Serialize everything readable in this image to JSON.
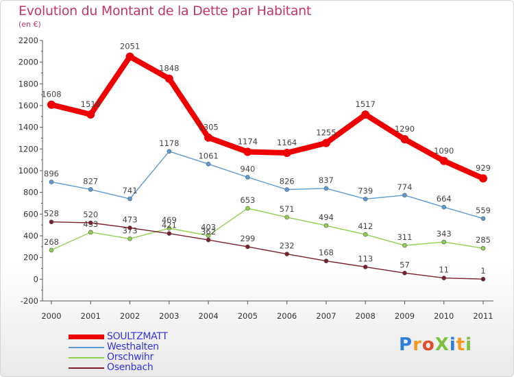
{
  "title": "Evolution du Montant de la Dette par Habitant",
  "subtitle": "(en €)",
  "logo_text": "ProXiti",
  "chart_data": {
    "type": "line",
    "title": "Evolution du Montant de la Dette par Habitant",
    "subtitle": "(en €)",
    "xlabel": "",
    "ylabel": "",
    "x": [
      "2000",
      "2001",
      "2002",
      "2003",
      "2004",
      "2005",
      "2006",
      "2007",
      "2008",
      "2009",
      "2010",
      "2011"
    ],
    "ylim": [
      -200,
      2200
    ],
    "yticks": [
      -200,
      0,
      200,
      400,
      600,
      800,
      1000,
      1200,
      1400,
      1600,
      1800,
      2000,
      2200
    ],
    "grid": false,
    "legend_position": "bottom-left",
    "series": [
      {
        "name": "SOULTZMATT",
        "color": "#ee0000",
        "label_color": "#3333dd",
        "width": 8,
        "values": [
          1608,
          1518,
          2051,
          1848,
          1305,
          1174,
          1164,
          1255,
          1517,
          1290,
          1090,
          929
        ]
      },
      {
        "name": "Westhalten",
        "color": "#5b9bd5",
        "label_color": "#3333dd",
        "width": 1.4,
        "values": [
          896,
          827,
          741,
          1178,
          1061,
          940,
          826,
          837,
          739,
          774,
          664,
          559
        ]
      },
      {
        "name": "Orschwihr",
        "color": "#8fd14f",
        "label_color": "#3333dd",
        "width": 1.4,
        "values": [
          268,
          433,
          373,
          469,
          403,
          653,
          571,
          494,
          412,
          311,
          343,
          285
        ]
      },
      {
        "name": "Osenbach",
        "color": "#7a1f2b",
        "label_color": "#3333dd",
        "width": 1.4,
        "values": [
          528,
          520,
          473,
          421,
          362,
          299,
          232,
          168,
          113,
          57,
          11,
          1
        ]
      }
    ]
  },
  "colors": {
    "title": "#c0356a",
    "axis": "#555555",
    "tick_text": "#333333",
    "value_text": "#444444",
    "accent_red": "#ee0000"
  }
}
